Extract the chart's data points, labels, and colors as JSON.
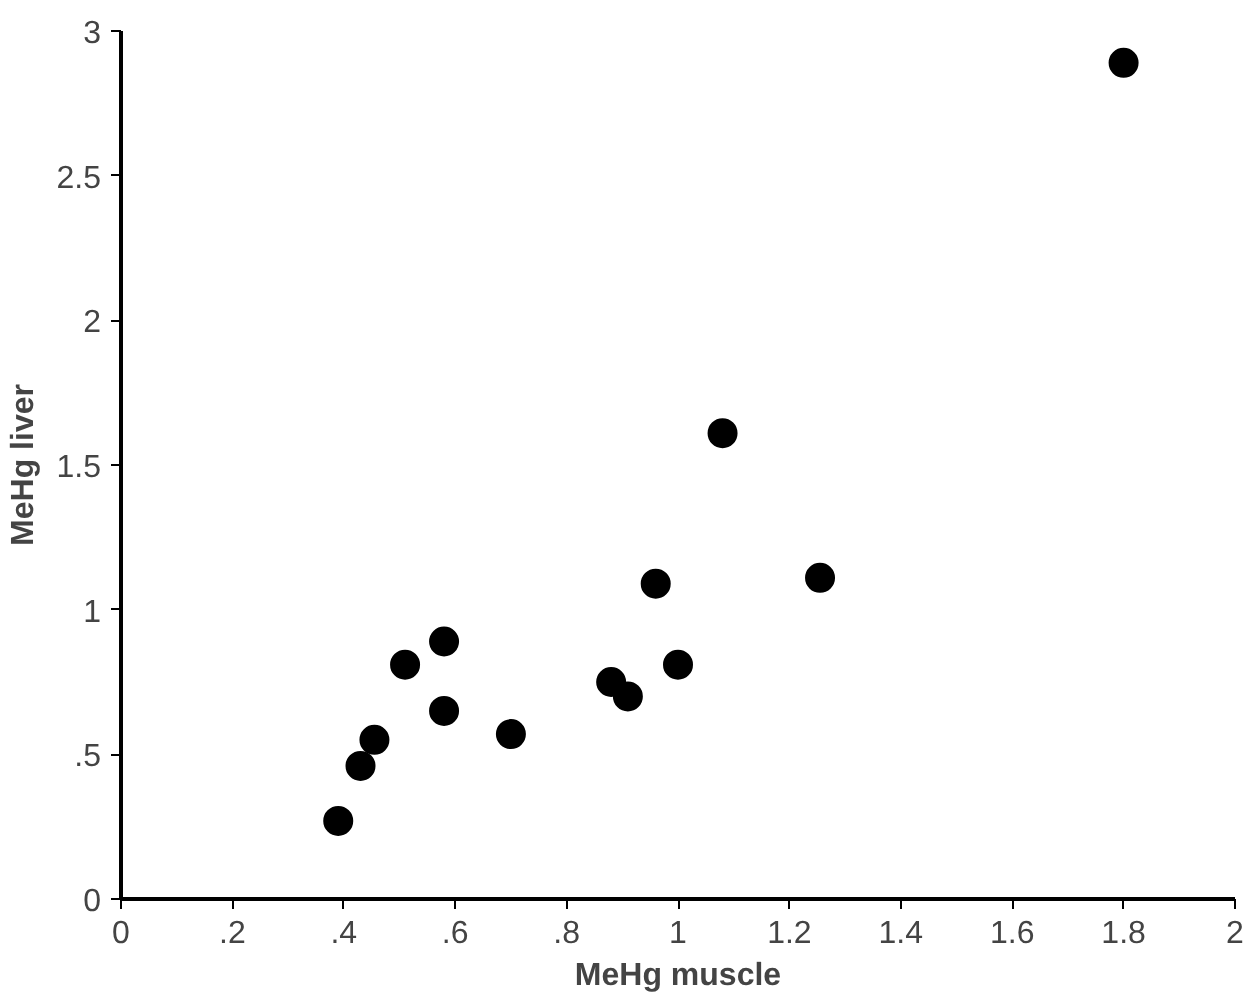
{
  "chart_data": {
    "type": "scatter",
    "xlabel": "MeHg muscle",
    "ylabel": "MeHg liver",
    "x": [
      0.39,
      0.43,
      0.455,
      0.51,
      0.58,
      0.58,
      0.7,
      0.88,
      0.91,
      0.96,
      1.0,
      1.08,
      1.255,
      1.8
    ],
    "values": [
      0.27,
      0.46,
      0.55,
      0.81,
      0.89,
      0.65,
      0.57,
      0.75,
      0.7,
      1.09,
      0.81,
      1.61,
      1.11,
      2.89
    ],
    "color": "#000000",
    "marker": "circle",
    "grid": false,
    "xlim": [
      0,
      2
    ],
    "ylim": [
      0,
      3
    ],
    "xticks": [
      0,
      {
        "value": 0.2,
        "label": ".2"
      },
      {
        "value": 0.4,
        "label": ".4"
      },
      {
        "value": 0.6,
        "label": ".6"
      },
      {
        "value": 0.8,
        "label": ".8"
      },
      1,
      1.2,
      1.4,
      1.6,
      1.8,
      2
    ],
    "yticks": [
      0,
      {
        "value": 0.5,
        "label": ".5"
      },
      1,
      1.5,
      2,
      2.5,
      3
    ]
  }
}
